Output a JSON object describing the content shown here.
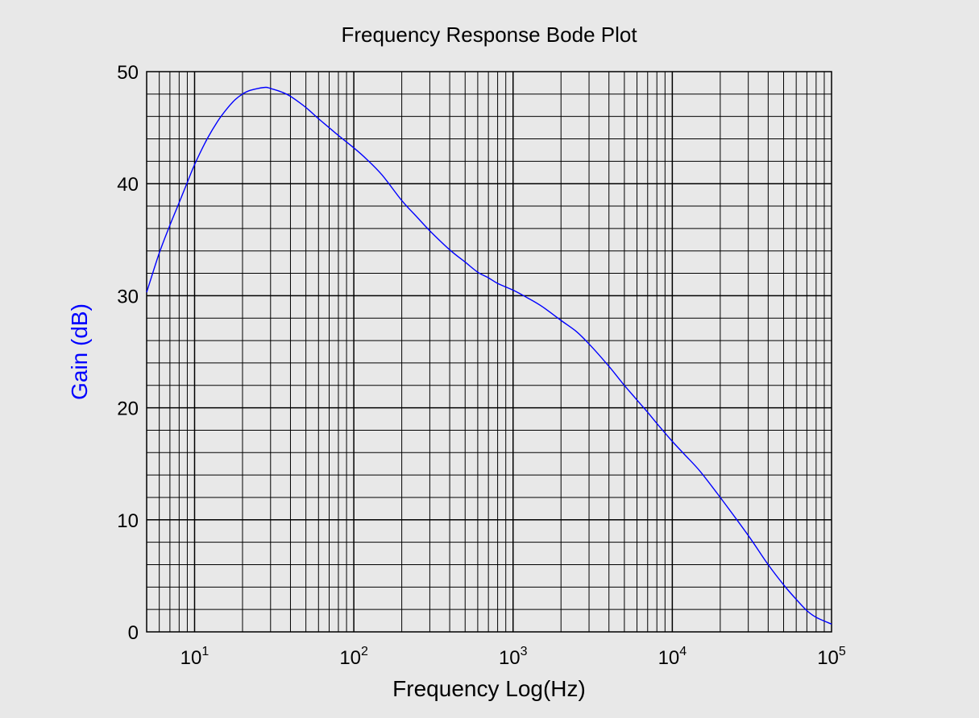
{
  "chart_data": {
    "type": "line",
    "title": "Frequency Response Bode Plot",
    "xlabel": "Frequency Log(Hz)",
    "ylabel": "Gain (dB)",
    "x_scale": "log",
    "xlim": [
      5,
      100000
    ],
    "ylim": [
      0,
      50
    ],
    "grid": true,
    "colors": {
      "series": "#0000ff",
      "ylabel": "#0000ff",
      "grid": "#000000",
      "background": "#e8e8e8"
    },
    "x_ticks": [
      {
        "base": "10",
        "exp": "1",
        "value": 10
      },
      {
        "base": "10",
        "exp": "2",
        "value": 100
      },
      {
        "base": "10",
        "exp": "3",
        "value": 1000
      },
      {
        "base": "10",
        "exp": "4",
        "value": 10000
      },
      {
        "base": "10",
        "exp": "5",
        "value": 100000
      }
    ],
    "y_ticks": [
      {
        "label": "0",
        "value": 0
      },
      {
        "label": "10",
        "value": 10
      },
      {
        "label": "20",
        "value": 20
      },
      {
        "label": "30",
        "value": 30
      },
      {
        "label": "40",
        "value": 40
      },
      {
        "label": "50",
        "value": 50
      }
    ],
    "series": [
      {
        "x": [
          5,
          6,
          7,
          8,
          9,
          10,
          12,
          14,
          16,
          18,
          20,
          22,
          25,
          28,
          30,
          35,
          40,
          50,
          60,
          70,
          80,
          100,
          120,
          150,
          200,
          250,
          300,
          400,
          500,
          600,
          700,
          800,
          1000,
          1200,
          1500,
          2000,
          2500,
          3000,
          4000,
          5000,
          6000,
          7000,
          8000,
          10000,
          12000,
          15000,
          20000,
          30000,
          40000,
          50000,
          60000,
          70000,
          80000,
          100000
        ],
        "y": [
          30.3,
          33.8,
          36.3,
          38.3,
          40.1,
          41.7,
          44.0,
          45.6,
          46.7,
          47.5,
          48.0,
          48.3,
          48.5,
          48.6,
          48.5,
          48.2,
          47.8,
          46.8,
          45.8,
          45.0,
          44.3,
          43.2,
          42.2,
          40.8,
          38.5,
          37.0,
          35.8,
          34.1,
          33.0,
          32.1,
          31.6,
          31.1,
          30.5,
          29.9,
          29.1,
          27.8,
          26.8,
          25.7,
          23.7,
          22.0,
          20.7,
          19.6,
          18.6,
          17.0,
          15.8,
          14.3,
          12.0,
          8.6,
          6.0,
          4.2,
          2.9,
          1.9,
          1.3,
          0.7
        ]
      }
    ]
  }
}
